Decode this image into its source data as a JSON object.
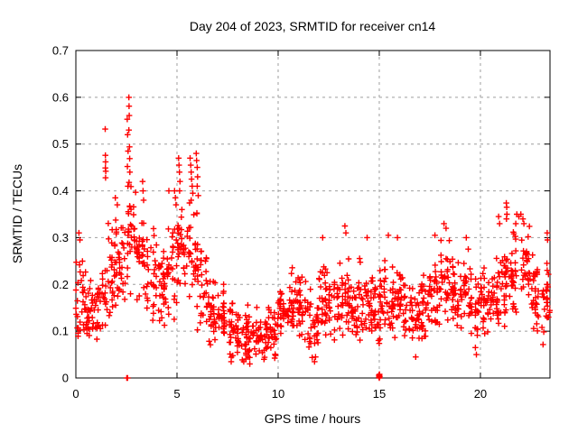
{
  "page_title": "Day 204 of 2023, SRMTID for receiver cn14",
  "chart_data": {
    "type": "scatter",
    "title": "Day 204 of 2023, SRMTID for receiver cn14",
    "xlabel": "GPS time / hours",
    "ylabel": "SRMTID / TECUs",
    "xlim": [
      0,
      23.44
    ],
    "ylim": [
      0,
      0.7
    ],
    "xticks": [
      0,
      5,
      10,
      15,
      20
    ],
    "xtick_labels": [
      "0",
      "5",
      "10",
      "15",
      "20"
    ],
    "yticks": [
      0,
      0.1,
      0.2,
      0.3,
      0.4,
      0.5,
      0.6,
      0.7
    ],
    "ytick_labels": [
      "0",
      "0.1",
      "0.2",
      "0.3",
      "0.4",
      "0.5",
      "0.6",
      "0.7"
    ],
    "grid": true,
    "grid_style": "dashed",
    "legend": "none",
    "marker": "plus",
    "marker_color": "#ff0000",
    "grid_color": "#9e9e9e",
    "border_color": "#000000",
    "background_color": "#ffffff",
    "series_name": "SRMTID",
    "sampling_note": "dense ~1-minute samples summarized as envelope bins [x_start, x_end, center, half_spread, n_points]",
    "envelope_bins": [
      [
        0.0,
        0.5,
        0.17,
        0.07,
        30
      ],
      [
        0.5,
        1.0,
        0.14,
        0.055,
        30
      ],
      [
        1.0,
        1.5,
        0.16,
        0.065,
        30
      ],
      [
        1.5,
        2.0,
        0.22,
        0.09,
        30
      ],
      [
        2.0,
        2.5,
        0.25,
        0.08,
        30
      ],
      [
        2.5,
        3.0,
        0.3,
        0.1,
        30
      ],
      [
        3.0,
        3.5,
        0.26,
        0.08,
        30
      ],
      [
        3.5,
        4.0,
        0.22,
        0.075,
        30
      ],
      [
        4.0,
        4.5,
        0.19,
        0.07,
        30
      ],
      [
        4.5,
        5.0,
        0.23,
        0.08,
        30
      ],
      [
        5.0,
        5.5,
        0.26,
        0.07,
        30
      ],
      [
        5.5,
        6.0,
        0.28,
        0.09,
        30
      ],
      [
        6.0,
        6.5,
        0.19,
        0.07,
        30
      ],
      [
        6.5,
        7.0,
        0.15,
        0.055,
        30
      ],
      [
        7.0,
        7.5,
        0.13,
        0.05,
        30
      ],
      [
        7.5,
        8.0,
        0.1,
        0.05,
        30
      ],
      [
        8.0,
        8.5,
        0.085,
        0.04,
        30
      ],
      [
        8.5,
        9.0,
        0.1,
        0.05,
        30
      ],
      [
        9.0,
        9.5,
        0.08,
        0.035,
        30
      ],
      [
        9.5,
        10.0,
        0.1,
        0.04,
        30
      ],
      [
        10.0,
        10.5,
        0.14,
        0.05,
        30
      ],
      [
        10.5,
        11.0,
        0.16,
        0.06,
        30
      ],
      [
        11.0,
        11.5,
        0.14,
        0.055,
        30
      ],
      [
        11.5,
        12.0,
        0.12,
        0.06,
        30
      ],
      [
        12.0,
        12.5,
        0.17,
        0.065,
        30
      ],
      [
        12.5,
        13.0,
        0.16,
        0.055,
        30
      ],
      [
        13.0,
        13.5,
        0.17,
        0.065,
        30
      ],
      [
        13.5,
        14.0,
        0.15,
        0.055,
        30
      ],
      [
        14.0,
        14.5,
        0.17,
        0.065,
        30
      ],
      [
        14.5,
        15.0,
        0.14,
        0.055,
        30
      ],
      [
        15.0,
        15.5,
        0.17,
        0.07,
        30
      ],
      [
        15.5,
        16.0,
        0.16,
        0.06,
        30
      ],
      [
        16.0,
        16.5,
        0.15,
        0.055,
        30
      ],
      [
        16.5,
        17.0,
        0.13,
        0.06,
        30
      ],
      [
        17.0,
        17.5,
        0.15,
        0.055,
        30
      ],
      [
        17.5,
        18.0,
        0.18,
        0.065,
        30
      ],
      [
        18.0,
        18.5,
        0.21,
        0.07,
        30
      ],
      [
        18.5,
        19.0,
        0.18,
        0.06,
        30
      ],
      [
        19.0,
        19.5,
        0.19,
        0.06,
        30
      ],
      [
        19.5,
        20.0,
        0.15,
        0.06,
        30
      ],
      [
        20.0,
        20.5,
        0.16,
        0.06,
        30
      ],
      [
        20.5,
        21.0,
        0.18,
        0.065,
        30
      ],
      [
        21.0,
        21.5,
        0.2,
        0.07,
        30
      ],
      [
        21.5,
        22.0,
        0.23,
        0.07,
        30
      ],
      [
        22.0,
        22.5,
        0.24,
        0.07,
        30
      ],
      [
        22.5,
        23.0,
        0.18,
        0.06,
        30
      ],
      [
        23.0,
        23.44,
        0.16,
        0.07,
        26
      ]
    ],
    "outlier_points": [
      [
        0.15,
        0.31
      ],
      [
        0.2,
        0.295
      ],
      [
        1.45,
        0.532
      ],
      [
        1.46,
        0.476
      ],
      [
        1.47,
        0.462
      ],
      [
        1.46,
        0.449
      ],
      [
        1.48,
        0.442
      ],
      [
        1.47,
        0.428
      ],
      [
        1.95,
        0.385
      ],
      [
        2.05,
        0.37
      ],
      [
        2.54,
        0.553
      ],
      [
        2.56,
        0.52
      ],
      [
        2.58,
        0.485
      ],
      [
        2.55,
        0.452
      ],
      [
        2.57,
        0.41
      ],
      [
        2.62,
        0.6
      ],
      [
        2.63,
        0.581
      ],
      [
        2.64,
        0.561
      ],
      [
        2.62,
        0.53
      ],
      [
        2.65,
        0.494
      ],
      [
        2.66,
        0.469
      ],
      [
        2.67,
        0.44
      ],
      [
        2.63,
        0.418
      ],
      [
        3.3,
        0.42
      ],
      [
        3.32,
        0.4
      ],
      [
        3.35,
        0.38
      ],
      [
        4.6,
        0.4
      ],
      [
        4.88,
        0.4
      ],
      [
        4.92,
        0.385
      ],
      [
        4.95,
        0.37
      ],
      [
        5.08,
        0.47
      ],
      [
        5.1,
        0.455
      ],
      [
        5.12,
        0.44
      ],
      [
        5.15,
        0.42
      ],
      [
        5.13,
        0.4
      ],
      [
        5.65,
        0.47
      ],
      [
        5.68,
        0.455
      ],
      [
        5.7,
        0.44
      ],
      [
        5.72,
        0.425
      ],
      [
        5.75,
        0.41
      ],
      [
        5.78,
        0.395
      ],
      [
        5.7,
        0.38
      ],
      [
        5.95,
        0.48
      ],
      [
        5.97,
        0.465
      ],
      [
        6.0,
        0.45
      ],
      [
        6.02,
        0.43
      ],
      [
        6.0,
        0.41
      ],
      [
        6.05,
        0.39
      ],
      [
        8.3,
        0.035
      ],
      [
        8.6,
        0.03
      ],
      [
        9.3,
        0.04
      ],
      [
        11.8,
        0.035
      ],
      [
        11.85,
        0.045
      ],
      [
        12.2,
        0.3
      ],
      [
        13.3,
        0.325
      ],
      [
        13.35,
        0.31
      ],
      [
        14.4,
        0.3
      ],
      [
        15.45,
        0.305
      ],
      [
        15.9,
        0.3
      ],
      [
        16.8,
        0.045
      ],
      [
        19.8,
        0.05
      ],
      [
        17.75,
        0.305
      ],
      [
        18.2,
        0.33
      ],
      [
        18.3,
        0.32
      ],
      [
        19.3,
        0.3
      ],
      [
        20.9,
        0.345
      ],
      [
        20.95,
        0.33
      ],
      [
        21.28,
        0.374
      ],
      [
        21.3,
        0.365
      ],
      [
        21.31,
        0.35
      ],
      [
        21.29,
        0.34
      ],
      [
        21.75,
        0.33
      ],
      [
        21.8,
        0.35
      ],
      [
        21.9,
        0.345
      ],
      [
        22.0,
        0.35
      ],
      [
        22.1,
        0.34
      ],
      [
        22.15,
        0.33
      ],
      [
        23.3,
        0.31
      ],
      [
        23.32,
        0.295
      ]
    ],
    "baseline_points": [
      [
        2.52,
        0.0
      ],
      [
        2.56,
        0.0
      ],
      [
        14.98,
        0.006
      ],
      [
        14.99,
        0.002
      ],
      [
        15.0,
        0.0
      ],
      [
        15.005,
        0.005
      ],
      [
        15.01,
        0.008
      ],
      [
        15.02,
        0.003
      ]
    ]
  }
}
